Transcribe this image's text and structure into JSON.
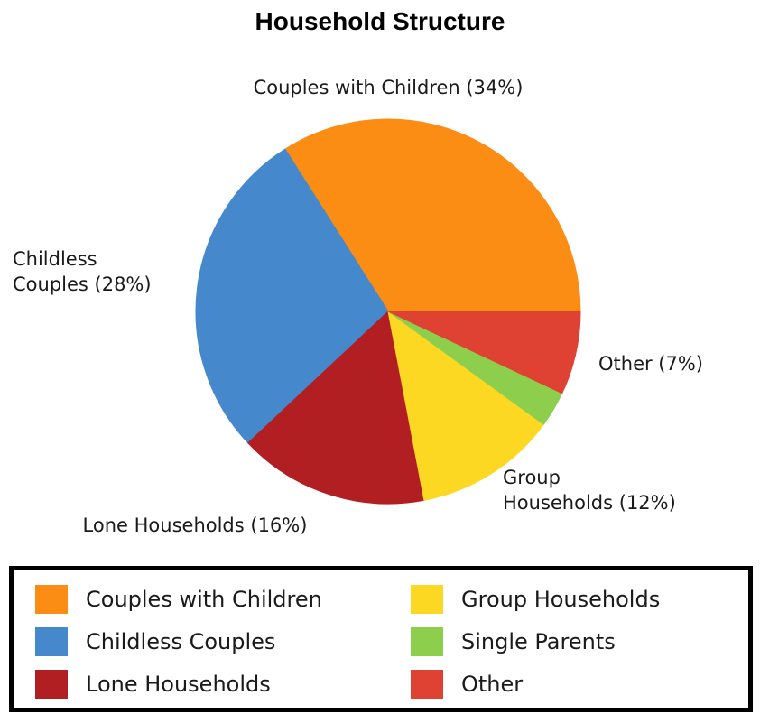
{
  "chart_data": {
    "type": "pie",
    "title": "Household Structure",
    "slices": [
      {
        "name": "Couples with Children",
        "value": 34,
        "label": "Couples with Children (34%)",
        "color": "#fb8c14"
      },
      {
        "name": "Childless Couples",
        "value": 28,
        "label": "Childless Couples (28%)",
        "color": "#4589cc"
      },
      {
        "name": "Lone Households",
        "value": 16,
        "label": "Lone Households (16%)",
        "color": "#b21f22"
      },
      {
        "name": "Group Households",
        "value": 12,
        "label": "Group Households (12%)",
        "color": "#fcd822"
      },
      {
        "name": "Single Parents",
        "value": 3,
        "label": "",
        "color": "#8dcf4c"
      },
      {
        "name": "Other",
        "value": 7,
        "label": "Other (7%)",
        "color": "#df4132"
      }
    ],
    "legend": {
      "position": "bottom",
      "items": [
        "Couples with Children",
        "Childless Couples",
        "Lone Households",
        "Group Households",
        "Single Parents",
        "Other"
      ]
    }
  }
}
